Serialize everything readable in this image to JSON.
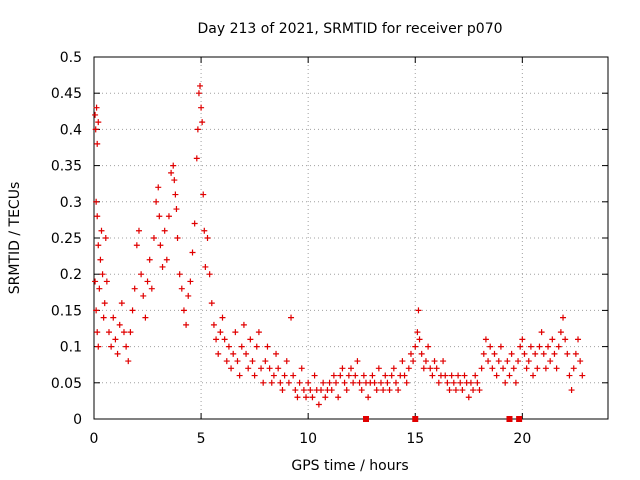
{
  "chart_data": {
    "type": "scatter",
    "title": "Day 213 of 2021, SRMTID for receiver p070",
    "xlabel": "GPS time / hours",
    "ylabel": "SRMTID / TECUs",
    "xlim": [
      0,
      24
    ],
    "ylim": [
      0,
      0.5
    ],
    "x_ticks": [
      0,
      5,
      10,
      15,
      20
    ],
    "x_tick_labels": [
      "0",
      "5",
      "10",
      "15",
      "20"
    ],
    "y_ticks": [
      0,
      0.05,
      0.1,
      0.15,
      0.2,
      0.25,
      0.3,
      0.35,
      0.4,
      0.45,
      0.5
    ],
    "y_tick_labels": [
      "0",
      "0.05",
      "0.1",
      "0.15",
      "0.2",
      "0.25",
      "0.3",
      "0.35",
      "0.4",
      "0.45",
      "0.5"
    ],
    "grid": true,
    "marker": "plus",
    "marker_color": "#e00000",
    "series": [
      {
        "name": "SRMTID",
        "color": "#e00000",
        "points": [
          [
            0.05,
            0.42
          ],
          [
            0.08,
            0.4
          ],
          [
            0.12,
            0.43
          ],
          [
            0.15,
            0.38
          ],
          [
            0.2,
            0.41
          ],
          [
            0.1,
            0.3
          ],
          [
            0.15,
            0.28
          ],
          [
            0.2,
            0.24
          ],
          [
            0.05,
            0.19
          ],
          [
            0.1,
            0.15
          ],
          [
            0.15,
            0.12
          ],
          [
            0.2,
            0.1
          ],
          [
            0.25,
            0.18
          ],
          [
            0.3,
            0.22
          ],
          [
            0.35,
            0.26
          ],
          [
            0.4,
            0.2
          ],
          [
            0.45,
            0.14
          ],
          [
            0.5,
            0.16
          ],
          [
            0.55,
            0.25
          ],
          [
            0.6,
            0.19
          ],
          [
            0.7,
            0.12
          ],
          [
            0.8,
            0.1
          ],
          [
            0.9,
            0.14
          ],
          [
            1.0,
            0.11
          ],
          [
            1.1,
            0.09
          ],
          [
            1.2,
            0.13
          ],
          [
            1.3,
            0.16
          ],
          [
            1.4,
            0.12
          ],
          [
            1.5,
            0.1
          ],
          [
            1.6,
            0.08
          ],
          [
            1.7,
            0.12
          ],
          [
            1.8,
            0.15
          ],
          [
            1.9,
            0.18
          ],
          [
            2.0,
            0.24
          ],
          [
            2.1,
            0.26
          ],
          [
            2.2,
            0.2
          ],
          [
            2.3,
            0.17
          ],
          [
            2.4,
            0.14
          ],
          [
            2.5,
            0.19
          ],
          [
            2.6,
            0.22
          ],
          [
            2.7,
            0.18
          ],
          [
            2.8,
            0.25
          ],
          [
            2.9,
            0.3
          ],
          [
            3.0,
            0.32
          ],
          [
            3.05,
            0.28
          ],
          [
            3.1,
            0.24
          ],
          [
            3.2,
            0.21
          ],
          [
            3.3,
            0.26
          ],
          [
            3.4,
            0.22
          ],
          [
            3.5,
            0.28
          ],
          [
            3.6,
            0.34
          ],
          [
            3.7,
            0.35
          ],
          [
            3.75,
            0.33
          ],
          [
            3.8,
            0.31
          ],
          [
            3.85,
            0.29
          ],
          [
            3.9,
            0.25
          ],
          [
            4.0,
            0.2
          ],
          [
            4.1,
            0.18
          ],
          [
            4.2,
            0.15
          ],
          [
            4.3,
            0.13
          ],
          [
            4.4,
            0.17
          ],
          [
            4.5,
            0.19
          ],
          [
            4.6,
            0.23
          ],
          [
            4.7,
            0.27
          ],
          [
            4.8,
            0.36
          ],
          [
            4.85,
            0.4
          ],
          [
            4.9,
            0.45
          ],
          [
            4.95,
            0.46
          ],
          [
            5.0,
            0.43
          ],
          [
            5.05,
            0.41
          ],
          [
            5.1,
            0.31
          ],
          [
            5.15,
            0.26
          ],
          [
            5.2,
            0.21
          ],
          [
            5.3,
            0.25
          ],
          [
            5.4,
            0.2
          ],
          [
            5.5,
            0.16
          ],
          [
            5.6,
            0.13
          ],
          [
            5.7,
            0.11
          ],
          [
            5.8,
            0.09
          ],
          [
            5.9,
            0.12
          ],
          [
            6.0,
            0.14
          ],
          [
            6.1,
            0.11
          ],
          [
            6.2,
            0.08
          ],
          [
            6.3,
            0.1
          ],
          [
            6.4,
            0.07
          ],
          [
            6.5,
            0.09
          ],
          [
            6.6,
            0.12
          ],
          [
            6.7,
            0.08
          ],
          [
            6.8,
            0.06
          ],
          [
            6.9,
            0.1
          ],
          [
            7.0,
            0.13
          ],
          [
            7.1,
            0.09
          ],
          [
            7.2,
            0.07
          ],
          [
            7.3,
            0.11
          ],
          [
            7.4,
            0.08
          ],
          [
            7.5,
            0.06
          ],
          [
            7.6,
            0.1
          ],
          [
            7.7,
            0.12
          ],
          [
            7.8,
            0.07
          ],
          [
            7.9,
            0.05
          ],
          [
            8.0,
            0.08
          ],
          [
            8.1,
            0.1
          ],
          [
            8.2,
            0.07
          ],
          [
            8.3,
            0.05
          ],
          [
            8.4,
            0.06
          ],
          [
            8.5,
            0.09
          ],
          [
            8.6,
            0.07
          ],
          [
            8.7,
            0.05
          ],
          [
            8.8,
            0.04
          ],
          [
            8.9,
            0.06
          ],
          [
            9.0,
            0.08
          ],
          [
            9.1,
            0.05
          ],
          [
            9.2,
            0.14
          ],
          [
            9.3,
            0.06
          ],
          [
            9.4,
            0.04
          ],
          [
            9.5,
            0.03
          ],
          [
            9.6,
            0.05
          ],
          [
            9.7,
            0.07
          ],
          [
            9.8,
            0.04
          ],
          [
            9.9,
            0.03
          ],
          [
            10.0,
            0.05
          ],
          [
            10.1,
            0.04
          ],
          [
            10.2,
            0.03
          ],
          [
            10.3,
            0.06
          ],
          [
            10.4,
            0.04
          ],
          [
            10.5,
            0.02
          ],
          [
            10.6,
            0.04
          ],
          [
            10.7,
            0.05
          ],
          [
            10.8,
            0.03
          ],
          [
            10.9,
            0.04
          ],
          [
            11.0,
            0.05
          ],
          [
            11.1,
            0.04
          ],
          [
            11.2,
            0.06
          ],
          [
            11.3,
            0.05
          ],
          [
            11.4,
            0.03
          ],
          [
            11.5,
            0.06
          ],
          [
            11.6,
            0.07
          ],
          [
            11.7,
            0.05
          ],
          [
            11.8,
            0.04
          ],
          [
            11.9,
            0.06
          ],
          [
            12.0,
            0.07
          ],
          [
            12.1,
            0.05
          ],
          [
            12.2,
            0.06
          ],
          [
            12.3,
            0.08
          ],
          [
            12.4,
            0.05
          ],
          [
            12.5,
            0.04
          ],
          [
            12.6,
            0.06
          ],
          [
            12.7,
            0.05
          ],
          [
            12.8,
            0.03
          ],
          [
            12.9,
            0.05
          ],
          [
            13.0,
            0.06
          ],
          [
            13.1,
            0.05
          ],
          [
            13.2,
            0.04
          ],
          [
            13.3,
            0.07
          ],
          [
            13.4,
            0.05
          ],
          [
            13.5,
            0.04
          ],
          [
            13.6,
            0.06
          ],
          [
            13.7,
            0.05
          ],
          [
            13.8,
            0.04
          ],
          [
            13.9,
            0.06
          ],
          [
            14.0,
            0.07
          ],
          [
            14.1,
            0.05
          ],
          [
            14.2,
            0.04
          ],
          [
            14.3,
            0.06
          ],
          [
            14.4,
            0.08
          ],
          [
            14.5,
            0.06
          ],
          [
            14.6,
            0.05
          ],
          [
            14.7,
            0.07
          ],
          [
            14.8,
            0.09
          ],
          [
            14.9,
            0.08
          ],
          [
            15.0,
            0.1
          ],
          [
            15.1,
            0.12
          ],
          [
            15.15,
            0.15
          ],
          [
            15.2,
            0.11
          ],
          [
            15.3,
            0.09
          ],
          [
            15.4,
            0.07
          ],
          [
            15.5,
            0.08
          ],
          [
            15.6,
            0.1
          ],
          [
            15.7,
            0.07
          ],
          [
            15.8,
            0.06
          ],
          [
            15.9,
            0.08
          ],
          [
            16.0,
            0.07
          ],
          [
            16.1,
            0.05
          ],
          [
            16.2,
            0.06
          ],
          [
            16.3,
            0.08
          ],
          [
            16.4,
            0.06
          ],
          [
            16.5,
            0.05
          ],
          [
            16.6,
            0.04
          ],
          [
            16.7,
            0.06
          ],
          [
            16.8,
            0.05
          ],
          [
            16.9,
            0.04
          ],
          [
            17.0,
            0.06
          ],
          [
            17.1,
            0.05
          ],
          [
            17.2,
            0.04
          ],
          [
            17.3,
            0.06
          ],
          [
            17.4,
            0.05
          ],
          [
            17.5,
            0.03
          ],
          [
            17.6,
            0.05
          ],
          [
            17.7,
            0.04
          ],
          [
            17.8,
            0.06
          ],
          [
            17.9,
            0.05
          ],
          [
            18.0,
            0.04
          ],
          [
            18.1,
            0.07
          ],
          [
            18.2,
            0.09
          ],
          [
            18.3,
            0.11
          ],
          [
            18.4,
            0.08
          ],
          [
            18.5,
            0.1
          ],
          [
            18.6,
            0.07
          ],
          [
            18.7,
            0.09
          ],
          [
            18.8,
            0.06
          ],
          [
            18.9,
            0.08
          ],
          [
            19.0,
            0.1
          ],
          [
            19.1,
            0.07
          ],
          [
            19.2,
            0.05
          ],
          [
            19.3,
            0.08
          ],
          [
            19.4,
            0.06
          ],
          [
            19.5,
            0.09
          ],
          [
            19.6,
            0.07
          ],
          [
            19.7,
            0.05
          ],
          [
            19.8,
            0.08
          ],
          [
            19.9,
            0.1
          ],
          [
            20.0,
            0.11
          ],
          [
            20.1,
            0.09
          ],
          [
            20.2,
            0.07
          ],
          [
            20.3,
            0.08
          ],
          [
            20.4,
            0.1
          ],
          [
            20.5,
            0.06
          ],
          [
            20.6,
            0.09
          ],
          [
            20.7,
            0.07
          ],
          [
            20.8,
            0.1
          ],
          [
            20.9,
            0.12
          ],
          [
            21.0,
            0.09
          ],
          [
            21.1,
            0.07
          ],
          [
            21.2,
            0.1
          ],
          [
            21.3,
            0.08
          ],
          [
            21.4,
            0.11
          ],
          [
            21.5,
            0.09
          ],
          [
            21.6,
            0.07
          ],
          [
            21.7,
            0.1
          ],
          [
            21.8,
            0.12
          ],
          [
            21.9,
            0.14
          ],
          [
            22.0,
            0.11
          ],
          [
            22.1,
            0.09
          ],
          [
            22.2,
            0.06
          ],
          [
            22.3,
            0.04
          ],
          [
            22.4,
            0.07
          ],
          [
            22.5,
            0.09
          ],
          [
            22.6,
            0.11
          ],
          [
            22.7,
            0.08
          ],
          [
            22.8,
            0.06
          ]
        ]
      }
    ],
    "zero_markers_x": [
      12.7,
      15.0,
      19.4,
      19.85
    ]
  }
}
